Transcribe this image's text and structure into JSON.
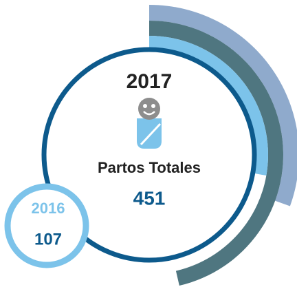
{
  "main": {
    "year": "2017",
    "label": "Partos Totales",
    "value": "451"
  },
  "previous": {
    "year": "2016",
    "value": "107"
  }
}
